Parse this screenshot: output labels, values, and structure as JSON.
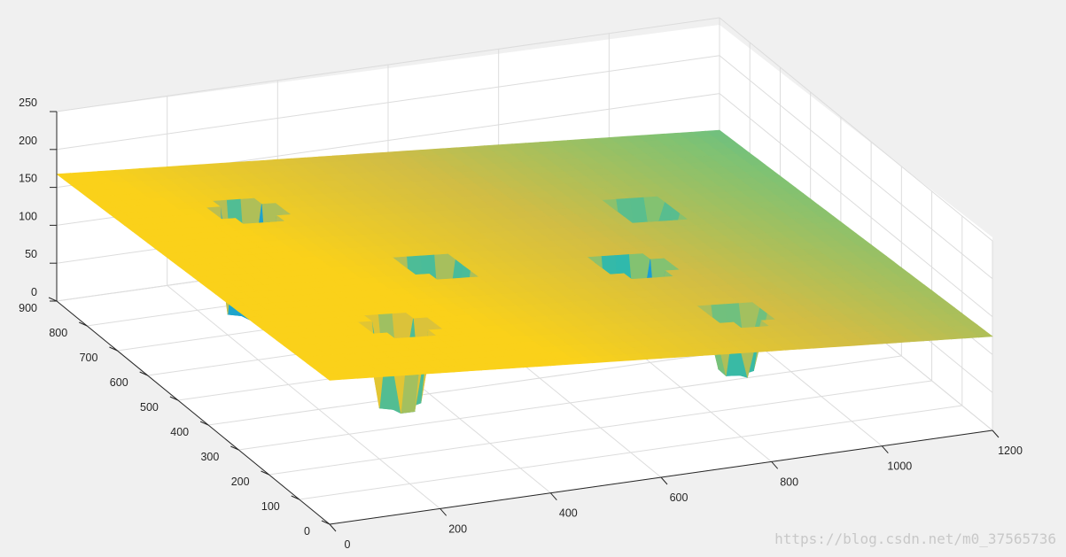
{
  "chart_data": {
    "type": "surface",
    "title": "",
    "xlabel": "",
    "ylabel": "",
    "zlabel": "",
    "xlim": [
      0,
      1200
    ],
    "ylim": [
      0,
      900
    ],
    "zlim": [
      0,
      250
    ],
    "x_ticks": [
      "0",
      "200",
      "400",
      "600",
      "800",
      "1000",
      "1200"
    ],
    "y_ticks": [
      "0",
      "100",
      "200",
      "300",
      "400",
      "500",
      "600",
      "700",
      "800",
      "900"
    ],
    "z_ticks": [
      "0",
      "50",
      "100",
      "150",
      "200",
      "250"
    ],
    "grid": true,
    "colormap": "parula",
    "surface": {
      "description_values": {
        "plateau_height_approx": 150,
        "left_region_height_approx": 165,
        "right_region_height_approx": 130
      },
      "pits": [
        {
          "x": 240,
          "y": 200,
          "depth_z": 60
        },
        {
          "x": 240,
          "y": 700,
          "depth_z": 20
        },
        {
          "x": 430,
          "y": 430,
          "depth_z": 20
        },
        {
          "x": 760,
          "y": 380,
          "depth_z": 20
        },
        {
          "x": 820,
          "y": 160,
          "depth_z": 60
        },
        {
          "x": 900,
          "y": 600,
          "depth_z": 60
        }
      ]
    },
    "colors": {
      "high": "#f9d41a",
      "mid": "#7fc06b",
      "low": "#1a82d8"
    }
  },
  "watermark": "https://blog.csdn.net/m0_37565736"
}
